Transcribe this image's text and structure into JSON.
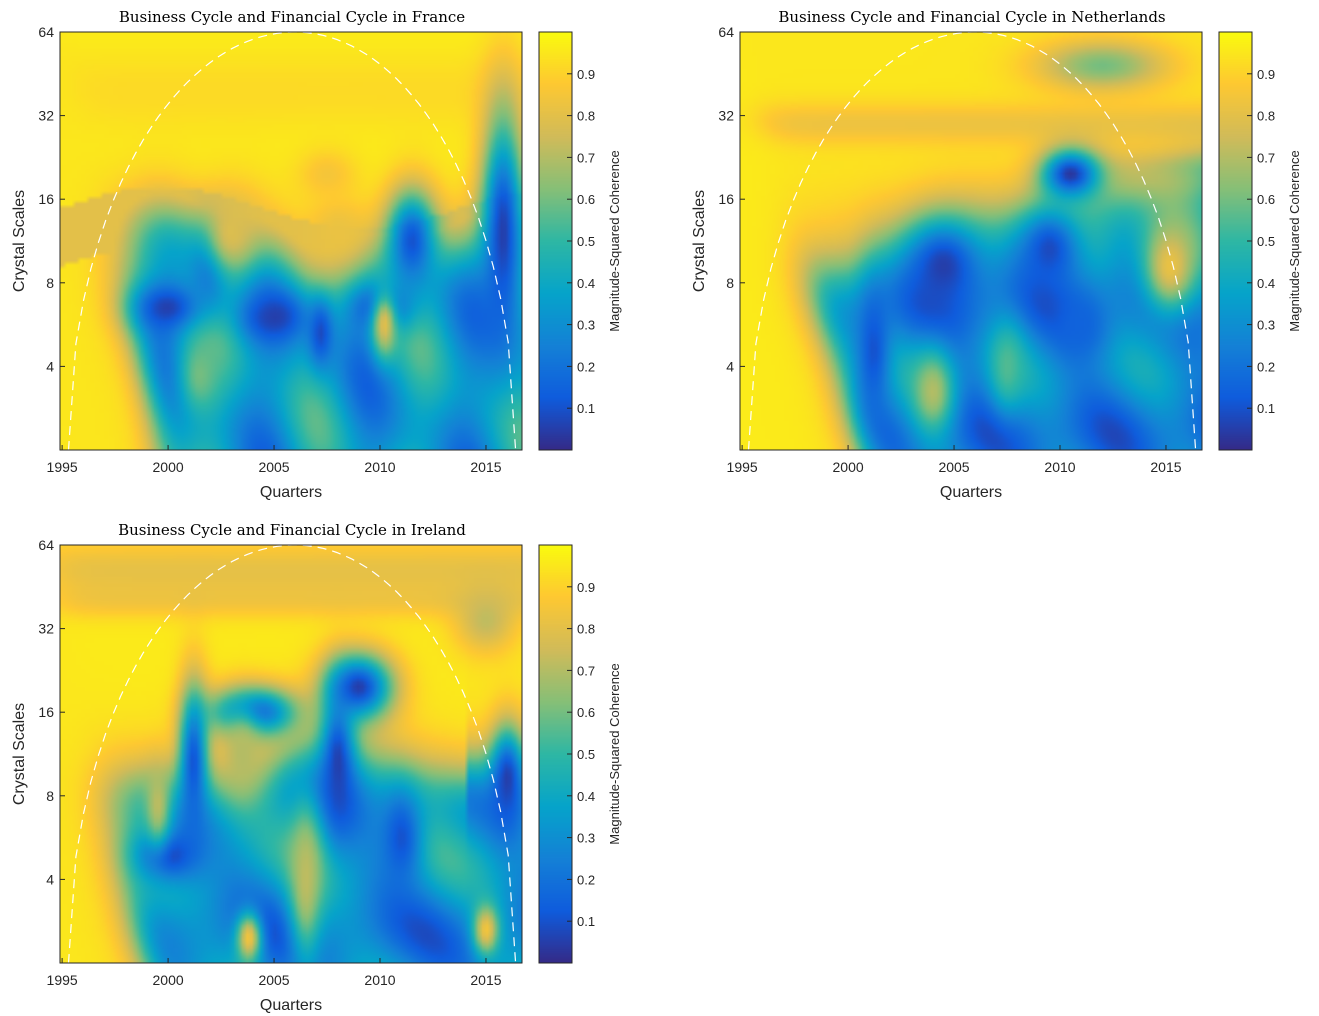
{
  "colormap": "parula",
  "colors": {
    "parula": [
      "#352a87",
      "#0f5cdd",
      "#1481d6",
      "#06a4ca",
      "#2eb7a4",
      "#87bf77",
      "#d1bb59",
      "#fec832",
      "#f9fb0e"
    ],
    "cone_of_influence": "#ffffff",
    "axis": "#262626"
  },
  "shared": {
    "xlabel": "Quarters",
    "ylabel": "Crystal Scales",
    "colorbar_label": "Magnitude-Squared Coherence",
    "x_ticks": [
      "1995",
      "2000",
      "2005",
      "2010",
      "2015"
    ],
    "y_ticks": [
      "4",
      "8",
      "16",
      "32",
      "64"
    ],
    "colorbar_ticks": [
      "0.1",
      "0.2",
      "0.3",
      "0.4",
      "0.5",
      "0.6",
      "0.7",
      "0.8",
      "0.9"
    ]
  },
  "chart_data": [
    {
      "type": "heatmap",
      "title": "Business Cycle and Financial Cycle in France",
      "xlabel": "Quarters",
      "ylabel": "Crystal Scales",
      "colorbar_label": "Magnitude-Squared Coherence",
      "x_range": [
        1994.9,
        2016.7
      ],
      "y_range_log2_scale": [
        2,
        64
      ],
      "y_scale": "log2",
      "x_ticks": [
        1995,
        2000,
        2005,
        2010,
        2015
      ],
      "y_ticks": [
        4,
        8,
        16,
        32,
        64
      ],
      "clim": [
        0,
        1
      ],
      "cone_of_influence": "white dashed, peak at 2006, scale 64",
      "blobs": [
        {
          "x": 2000,
          "s": 1.7,
          "v": 0.05,
          "rx": 1.6,
          "ry": 0.3
        },
        {
          "x": 2005,
          "s": 1.6,
          "v": 0.05,
          "rx": 1.5,
          "ry": 0.3
        },
        {
          "x": 2010,
          "s": 1.7,
          "v": 0.08,
          "rx": 1.4,
          "ry": 0.3
        },
        {
          "x": 2015.8,
          "s": 2.6,
          "v": 0.05,
          "rx": 1.0,
          "ry": 1.4
        },
        {
          "x": 2002,
          "s": 2.2,
          "v": 0.1,
          "rx": 1.0,
          "ry": 0.5
        },
        {
          "x": 2011.5,
          "s": 2.5,
          "v": 0.1,
          "rx": 1.2,
          "ry": 0.6
        },
        {
          "x": 2007.2,
          "s": 1.4,
          "v": 0.08,
          "rx": 0.6,
          "ry": 0.4
        },
        {
          "x": 2003,
          "s": 2.6,
          "v": 0.78,
          "rx": 1.4,
          "ry": 0.55
        },
        {
          "x": 2008,
          "s": 2.6,
          "v": 0.82,
          "rx": 1.3,
          "ry": 0.4
        },
        {
          "x": 2007.5,
          "s": 3.3,
          "v": 0.85,
          "rx": 1.4,
          "ry": 0.3
        },
        {
          "x": 2010.2,
          "s": 1.5,
          "v": 0.8,
          "rx": 0.6,
          "ry": 0.4
        },
        {
          "x": 2001.5,
          "s": 0.9,
          "v": 0.6,
          "rx": 1.0,
          "ry": 0.5
        }
      ]
    },
    {
      "type": "heatmap",
      "title": "Business Cycle and Financial Cycle in Netherlands",
      "xlabel": "Quarters",
      "ylabel": "Crystal Scales",
      "colorbar_label": "Magnitude-Squared Coherence",
      "x_range": [
        1994.9,
        2016.7
      ],
      "y_range_log2_scale": [
        2,
        64
      ],
      "y_scale": "log2",
      "x_ticks": [
        1995,
        2000,
        2005,
        2010,
        2015
      ],
      "y_ticks": [
        4,
        8,
        16,
        32,
        64
      ],
      "clim": [
        0,
        1
      ],
      "cone_of_influence": "white dashed, peak at 2006, scale 64",
      "blobs": [
        {
          "x": 2010.5,
          "s": 3.3,
          "v": 0.03,
          "rx": 1.4,
          "ry": 0.3
        },
        {
          "x": 2004.5,
          "s": 2.2,
          "v": 0.05,
          "rx": 2.0,
          "ry": 0.6
        },
        {
          "x": 2009.5,
          "s": 2.4,
          "v": 0.08,
          "rx": 1.5,
          "ry": 0.5
        },
        {
          "x": 2001.2,
          "s": 1.2,
          "v": 0.1,
          "rx": 0.8,
          "ry": 0.8
        },
        {
          "x": 2011,
          "s": 1.5,
          "v": 0.15,
          "rx": 1.2,
          "ry": 0.4
        },
        {
          "x": 2015.2,
          "s": 2.2,
          "v": 0.82,
          "rx": 1.4,
          "ry": 0.6
        },
        {
          "x": 2012,
          "s": 4.6,
          "v": 0.6,
          "rx": 3.0,
          "ry": 0.3
        },
        {
          "x": 2004,
          "s": 0.7,
          "v": 0.7,
          "rx": 1.0,
          "ry": 0.5
        },
        {
          "x": 2007.5,
          "s": 1.0,
          "v": 0.55,
          "rx": 0.8,
          "ry": 0.5
        }
      ]
    },
    {
      "type": "heatmap",
      "title": "Business Cycle and Financial Cycle in Ireland",
      "xlabel": "Quarters",
      "ylabel": "Crystal Scales",
      "colorbar_label": "Magnitude-Squared Coherence",
      "x_range": [
        1994.9,
        2016.7
      ],
      "y_range_log2_scale": [
        2,
        64
      ],
      "y_scale": "log2",
      "x_ticks": [
        1995,
        2000,
        2005,
        2010,
        2015
      ],
      "y_ticks": [
        4,
        8,
        16,
        32,
        64
      ],
      "clim": [
        0,
        1
      ],
      "cone_of_influence": "white dashed, peak at 2006, scale 64",
      "blobs": [
        {
          "x": 2009,
          "s": 3.3,
          "v": 0.05,
          "rx": 1.6,
          "ry": 0.4
        },
        {
          "x": 2004,
          "s": 3.0,
          "v": 0.08,
          "rx": 2.0,
          "ry": 0.3
        },
        {
          "x": 2000,
          "s": 1.3,
          "v": 0.05,
          "rx": 1.6,
          "ry": 0.35
        },
        {
          "x": 2008,
          "s": 2.4,
          "v": 0.05,
          "rx": 0.8,
          "ry": 0.8
        },
        {
          "x": 2016,
          "s": 2.2,
          "v": 0.05,
          "rx": 0.8,
          "ry": 0.6
        },
        {
          "x": 2001.2,
          "s": 2.4,
          "v": 0.1,
          "rx": 0.7,
          "ry": 0.9
        },
        {
          "x": 2011,
          "s": 1.5,
          "v": 0.1,
          "rx": 1.0,
          "ry": 0.6
        },
        {
          "x": 2003.5,
          "s": 2.5,
          "v": 0.7,
          "rx": 1.0,
          "ry": 0.6
        },
        {
          "x": 1999.5,
          "s": 1.9,
          "v": 0.72,
          "rx": 0.6,
          "ry": 0.5
        },
        {
          "x": 2006.5,
          "s": 1.0,
          "v": 0.72,
          "rx": 0.8,
          "ry": 1.0
        },
        {
          "x": 2003.8,
          "s": 0.3,
          "v": 0.85,
          "rx": 0.6,
          "ry": 0.3
        },
        {
          "x": 2015,
          "s": 0.4,
          "v": 0.85,
          "rx": 0.6,
          "ry": 0.3
        },
        {
          "x": 2015,
          "s": 4.1,
          "v": 0.72,
          "rx": 1.5,
          "ry": 0.4
        }
      ]
    }
  ]
}
